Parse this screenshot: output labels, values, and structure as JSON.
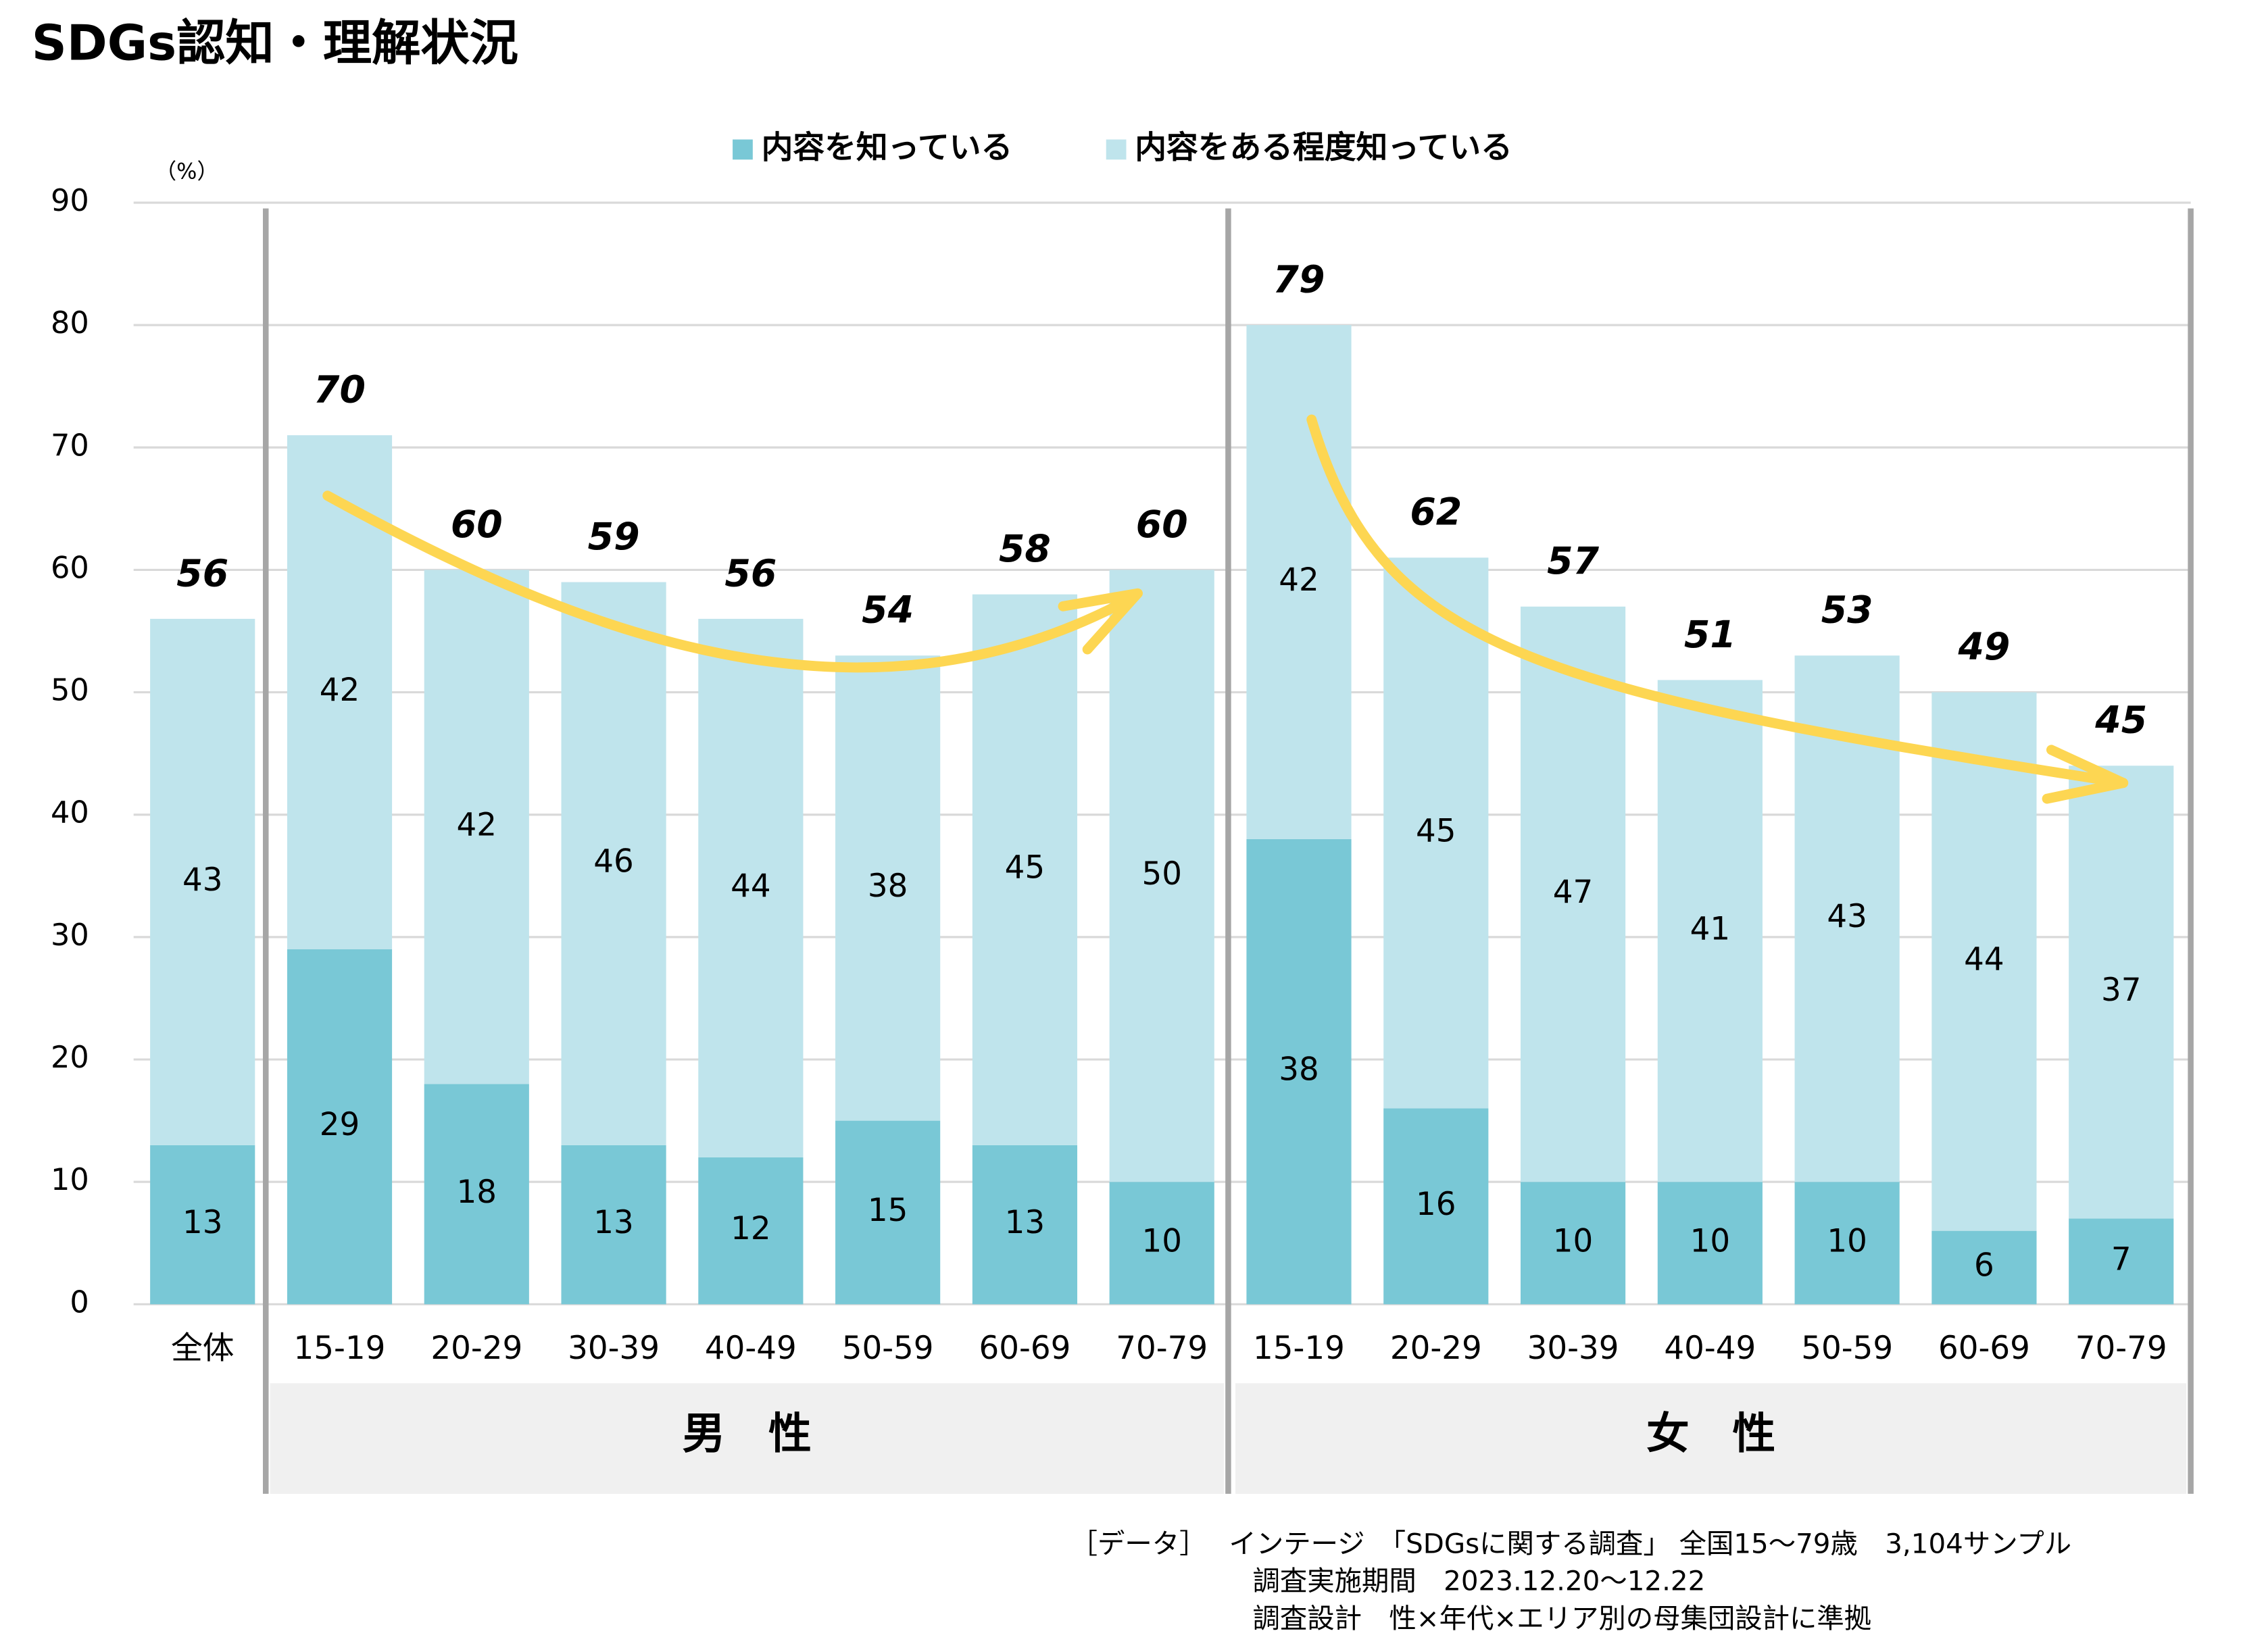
{
  "chart_data": {
    "type": "stacked_bar",
    "title": "SDGs認知・理解状況",
    "y_unit": "（%）",
    "categories": [
      "全体",
      "15-19",
      "20-29",
      "30-39",
      "40-49",
      "50-59",
      "60-69",
      "70-79",
      "15-19",
      "20-29",
      "30-39",
      "40-49",
      "50-59",
      "60-69",
      "70-79"
    ],
    "series": [
      {
        "name": "内容を知っている",
        "color": "#79c8d6",
        "label_color": "#ffffff",
        "values": [
          13,
          29,
          18,
          13,
          12,
          15,
          13,
          10,
          38,
          16,
          10,
          10,
          10,
          6,
          7
        ]
      },
      {
        "name": "内容をある程度知っている",
        "color": "#bfe4ec",
        "label_color": "#000000",
        "values": [
          43,
          42,
          42,
          46,
          44,
          38,
          45,
          50,
          42,
          45,
          47,
          41,
          43,
          44,
          37
        ]
      }
    ],
    "totals": [
      56,
      70,
      60,
      59,
      56,
      54,
      58,
      60,
      79,
      62,
      57,
      51,
      53,
      49,
      45
    ],
    "totals_color": "#3a98a8",
    "groups": [
      {
        "name": "男　性",
        "color": "#3a98a8"
      },
      {
        "name": "女　性",
        "color": "#e03a3a"
      }
    ],
    "ylim": [
      0,
      90
    ],
    "yticks": [
      0,
      10,
      20,
      30,
      40,
      50,
      60,
      70,
      80,
      90
    ],
    "grid": true,
    "legend": "top",
    "notes": [
      "［データ］　 インテージ　「SDGsに関する調査」 全国15～79歳　3,104サンプル",
      "調査実施期間　2023.12.20～12.22",
      "調査設計　性×年代×エリア別の母集団設計に準拠"
    ]
  }
}
